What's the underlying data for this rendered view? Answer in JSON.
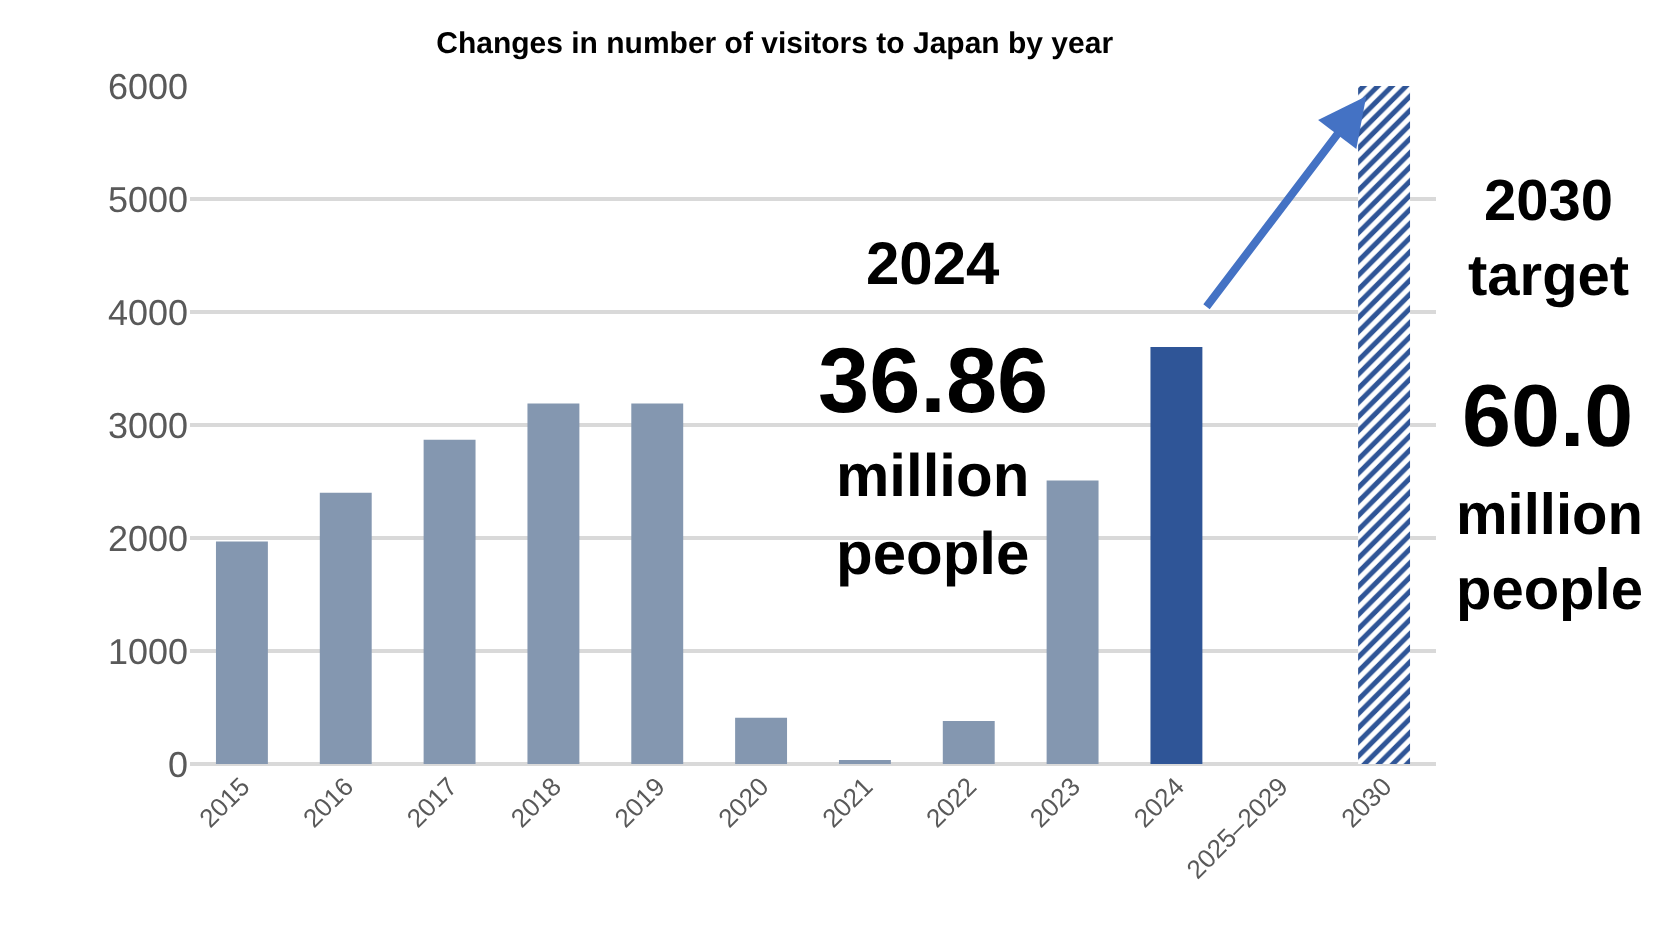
{
  "chart_data": {
    "type": "bar",
    "title": "Changes in number of visitors to Japan by year",
    "categories": [
      "2015",
      "2016",
      "2017",
      "2018",
      "2019",
      "2020",
      "2021",
      "2022",
      "2023",
      "2024",
      "2025–2029",
      "2030"
    ],
    "series": [
      {
        "colors": [
          "#8497b0",
          "#8497b0",
          "#8497b0",
          "#8497b0",
          "#8497b0",
          "#8497b0",
          "#8497b0",
          "#8497b0",
          "#8497b0",
          "#2f5597",
          null,
          null
        ],
        "values": [
          1970,
          2400,
          2870,
          3190,
          3190,
          410,
          20,
          380,
          2510,
          3690,
          null,
          null
        ]
      },
      {
        "color": "#2f5597",
        "values": [
          null,
          null,
          null,
          null,
          null,
          null,
          null,
          null,
          null,
          null,
          null,
          6000
        ]
      }
    ],
    "ylim": [
      0,
      6000
    ],
    "yticks": [
      0,
      1000,
      2000,
      3000,
      4000,
      5000,
      6000
    ],
    "grid": "y",
    "annotations": [
      "2024",
      "36.86",
      "million\npeople",
      "2030\ntarget",
      "60.0",
      "million\npeople"
    ]
  }
}
